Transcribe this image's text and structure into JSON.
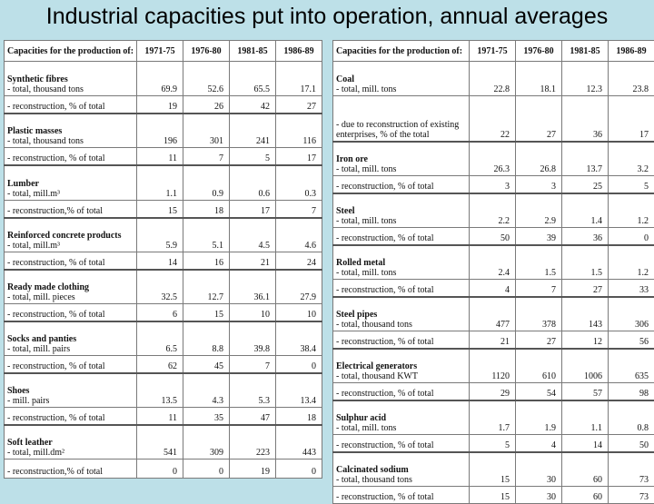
{
  "title": "Industrial capacities put into operation, annual averages",
  "left_table": {
    "headers": [
      "Capacities for the production of:",
      "1971-75",
      "1976-80",
      "1981-85",
      "1986-89"
    ],
    "groups": [
      {
        "category": "Synthetic fibres",
        "rows": [
          {
            "label": "- total, thousand tons",
            "values": [
              "69.9",
              "52.6",
              "65.5",
              "17.1"
            ]
          },
          {
            "label": "- reconstruction, % of total",
            "values": [
              "19",
              "26",
              "42",
              "27"
            ]
          }
        ]
      },
      {
        "category": "Plastic masses",
        "rows": [
          {
            "label": "- total, thousand tons",
            "values": [
              "196",
              "301",
              "241",
              "116"
            ]
          },
          {
            "label": "- reconstruction, % of total",
            "values": [
              "11",
              "7",
              "5",
              "17"
            ]
          }
        ]
      },
      {
        "category": "Lumber",
        "rows": [
          {
            "label": "- total, mill.m³",
            "values": [
              "1.1",
              "0.9",
              "0.6",
              "0.3"
            ]
          },
          {
            "label": "- reconstruction,% of total",
            "values": [
              "15",
              "18",
              "17",
              "7"
            ]
          }
        ]
      },
      {
        "category": "Reinforced concrete products",
        "rows": [
          {
            "label": "- total,  mill.m³",
            "values": [
              "5.9",
              "5.1",
              "4.5",
              "4.6"
            ]
          },
          {
            "label": "- reconstruction, % of total",
            "values": [
              "14",
              "16",
              "21",
              "24"
            ]
          }
        ]
      },
      {
        "category": "Ready made clothing",
        "rows": [
          {
            "label": "- total, mill. pieces",
            "values": [
              "32.5",
              "12.7",
              "36.1",
              "27.9"
            ]
          },
          {
            "label": "- reconstruction, % of total",
            "values": [
              "6",
              "15",
              "10",
              "10"
            ]
          }
        ]
      },
      {
        "category": "Socks and panties",
        "rows": [
          {
            "label": "- total, mill. pairs",
            "values": [
              "6.5",
              "8.8",
              "39.8",
              "38.4"
            ]
          },
          {
            "label": "- reconstruction, % of total",
            "values": [
              "62",
              "45",
              "7",
              "0"
            ]
          }
        ]
      },
      {
        "category": "Shoes",
        "rows": [
          {
            "label": "- mill. pairs",
            "values": [
              "13.5",
              "4.3",
              "5.3",
              "13.4"
            ]
          },
          {
            "label": "- reconstruction, % of total",
            "values": [
              "11",
              "35",
              "47",
              "18"
            ]
          }
        ]
      },
      {
        "category": "Soft leather",
        "rows": [
          {
            "label": "- total, mill.dm²",
            "values": [
              "541",
              "309",
              "223",
              "443"
            ]
          },
          {
            "label": "- reconstruction,% of total",
            "values": [
              "0",
              "0",
              "19",
              "0"
            ]
          }
        ]
      }
    ]
  },
  "right_table": {
    "headers": [
      "Capacities for the production of:",
      "1971-75",
      "1976-80",
      "1981-85",
      "1986-89"
    ],
    "groups": [
      {
        "category": "Coal",
        "rows": [
          {
            "label": "- total, mill. tons",
            "values": [
              "22.8",
              "18.1",
              "12.3",
              "23.8"
            ]
          },
          {
            "label": "- due to reconstruction of existing enterprises, % of the total",
            "values": [
              "22",
              "27",
              "36",
              "17"
            ]
          }
        ]
      },
      {
        "category": "Iron ore",
        "rows": [
          {
            "label": "- total, mill. tons",
            "values": [
              "26.3",
              "26.8",
              "13.7",
              "3.2"
            ]
          },
          {
            "label": "- reconstruction, % of total",
            "values": [
              "3",
              "3",
              "25",
              "5"
            ]
          }
        ]
      },
      {
        "category": "Steel",
        "rows": [
          {
            "label": "- total, mill. tons",
            "values": [
              "2.2",
              "2.9",
              "1.4",
              "1.2"
            ]
          },
          {
            "label": "- reconstruction, %    of total",
            "values": [
              "50",
              "39",
              "36",
              "0"
            ]
          }
        ]
      },
      {
        "category": "Rolled metal",
        "rows": [
          {
            "label": "- total, mill. tons",
            "values": [
              "2.4",
              "1.5",
              "1.5",
              "1.2"
            ]
          },
          {
            "label": "- reconstruction, % of total",
            "values": [
              "4",
              "7",
              "27",
              "33"
            ]
          }
        ]
      },
      {
        "category": "Steel pipes",
        "rows": [
          {
            "label": "- total, thousand tons",
            "values": [
              "477",
              "378",
              "143",
              "306"
            ]
          },
          {
            "label": "- reconstruction, % of total",
            "values": [
              "21",
              "27",
              "12",
              "56"
            ]
          }
        ]
      },
      {
        "category": "Electrical generators",
        "rows": [
          {
            "label": "- total, thousand KWT",
            "values": [
              "1120",
              "610",
              "1006",
              "635"
            ]
          },
          {
            "label": "- reconstruction, %  of total",
            "values": [
              "29",
              "54",
              "57",
              "98"
            ]
          }
        ]
      },
      {
        "category": "Sulphur acid",
        "rows": [
          {
            "label": "- total, mill. tons",
            "values": [
              "1.7",
              "1.9",
              "1.1",
              "0.8"
            ]
          },
          {
            "label": "- reconstruction, % of total",
            "values": [
              "5",
              "4",
              "14",
              "50"
            ]
          }
        ]
      },
      {
        "category": "Calcinated sodium",
        "rows": [
          {
            "label": "- total, thousand tons",
            "values": [
              "15",
              "30",
              "60",
              "73"
            ]
          },
          {
            "label": "- reconstruction, % of total",
            "values": [
              "15",
              "30",
              "60",
              "73"
            ]
          }
        ]
      }
    ]
  }
}
